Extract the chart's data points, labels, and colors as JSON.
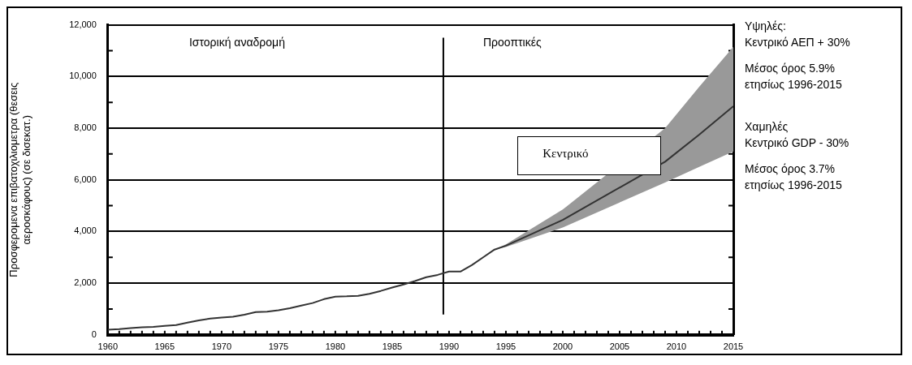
{
  "chart_data": {
    "type": "line",
    "ylabel": "Προσφερομενα επιβατοχιλιομετρα (θεσεις αεροσκάφους) (σε δισεκατ.)",
    "x": [
      1960,
      1961,
      1962,
      1963,
      1964,
      1965,
      1966,
      1967,
      1968,
      1969,
      1970,
      1971,
      1972,
      1973,
      1974,
      1975,
      1976,
      1977,
      1978,
      1979,
      1980,
      1981,
      1982,
      1983,
      1984,
      1985,
      1986,
      1987,
      1988,
      1989,
      1990,
      1991,
      1992,
      1993,
      1994,
      1995,
      2000,
      2009,
      2012,
      2015
    ],
    "series": [
      {
        "color": "#333333",
        "values": [
          200,
          220,
          260,
          290,
          310,
          350,
          380,
          470,
          560,
          630,
          670,
          700,
          780,
          880,
          900,
          950,
          1030,
          1130,
          1230,
          1380,
          1480,
          1490,
          1510,
          1590,
          1700,
          1830,
          1950,
          2080,
          2230,
          2320,
          2450,
          2450,
          2700,
          3000,
          3300,
          3450,
          4450,
          6700,
          7750,
          8850
        ],
        "lower": [
          null,
          null,
          null,
          null,
          null,
          null,
          null,
          null,
          null,
          null,
          null,
          null,
          null,
          null,
          null,
          null,
          null,
          null,
          null,
          null,
          null,
          null,
          null,
          null,
          null,
          null,
          null,
          null,
          null,
          null,
          null,
          null,
          null,
          null,
          3300,
          3400,
          4150,
          5900,
          6500,
          7100
        ],
        "upper": [
          null,
          null,
          null,
          null,
          null,
          null,
          null,
          null,
          null,
          null,
          null,
          null,
          null,
          null,
          null,
          null,
          null,
          null,
          null,
          null,
          null,
          null,
          null,
          null,
          null,
          null,
          null,
          null,
          null,
          null,
          null,
          null,
          null,
          null,
          3300,
          3500,
          4850,
          8000,
          9600,
          11150
        ]
      }
    ],
    "xlim": [
      1960,
      2015
    ],
    "xticks": [
      1960,
      1965,
      1970,
      1975,
      1980,
      1985,
      1990,
      1995,
      2000,
      2005,
      2010,
      2015
    ],
    "ylim": [
      0,
      12000
    ],
    "yticks": [
      0,
      {
        "value": 2000,
        "label": "2,000"
      },
      {
        "value": 4000,
        "label": "4,000"
      },
      {
        "value": 6000,
        "label": "6,000"
      },
      {
        "value": 8000,
        "label": "8,000"
      },
      {
        "value": 10000,
        "label": "10,000"
      },
      {
        "value": 12000,
        "label": "12,000"
      }
    ],
    "grid": "y",
    "legend": false,
    "marker": "none",
    "line_style": "solid",
    "ref_lines": [
      {
        "axis": "x",
        "value": 1989.5,
        "color": "#000000"
      }
    ],
    "annotations": [
      "Ιστορική αναδρομή",
      "Προοπτικές",
      "Κεντρικό",
      "Υψηλές:\nΚεντρικό ΑΕΠ + 30%",
      "Μέσος όρος 5.9%\nετησίως 1996-2015",
      "Χαμηλές\nΚεντρικό GDP - 30%",
      "Μέσος όρος 3.7%\nετησίως 1996-2015"
    ]
  }
}
